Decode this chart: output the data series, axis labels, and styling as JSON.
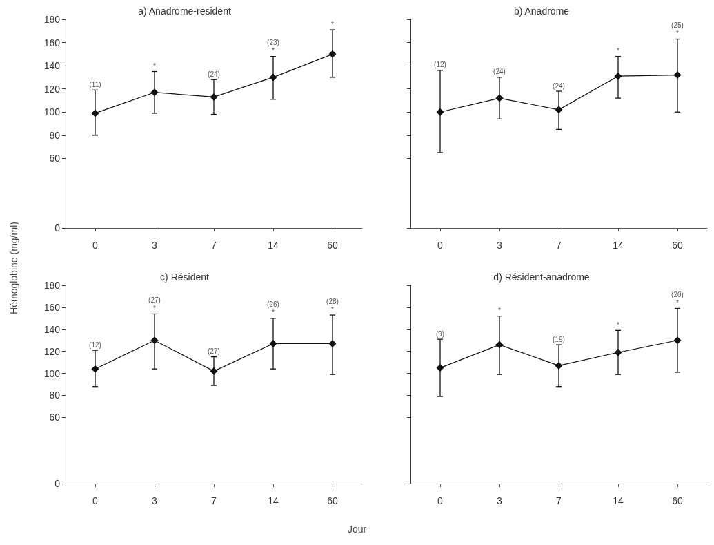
{
  "chart_data": [
    {
      "type": "line",
      "title": "a) Anadrome-resident",
      "xlabel": "Jour",
      "ylabel": "Hémoglobine (mg/ml)",
      "categories": [
        "0",
        "3",
        "7",
        "14",
        "60"
      ],
      "series": [
        {
          "color": "#111111",
          "values": [
            99,
            117,
            113,
            130,
            150
          ],
          "errors": [
            [
              80,
              119
            ],
            [
              99,
              135
            ],
            [
              98,
              128
            ],
            [
              111,
              148
            ],
            [
              130,
              171
            ]
          ]
        }
      ],
      "ylim": [
        0,
        180
      ],
      "yticks": [
        0,
        60,
        80,
        100,
        120,
        140,
        160,
        180
      ],
      "grid": false,
      "marker": "diamond",
      "line_style": "solid",
      "annotations": [
        {
          "text": "(11)",
          "x": "0",
          "y": 119
        },
        {
          "text": "*",
          "x": "3",
          "y": 135
        },
        {
          "text": "(24)",
          "x": "7",
          "y": 128
        },
        {
          "text": "*",
          "x": "14",
          "y": 148
        },
        {
          "text": "(23)",
          "x": "14",
          "y": 148
        },
        {
          "text": "*",
          "x": "60",
          "y": 171
        }
      ]
    },
    {
      "type": "line",
      "title": "b) Anadrome",
      "categories": [
        "0",
        "3",
        "7",
        "14",
        "60"
      ],
      "series": [
        {
          "color": "#111111",
          "values": [
            100,
            112,
            102,
            131,
            132
          ],
          "errors": [
            [
              65,
              136
            ],
            [
              94,
              130
            ],
            [
              85,
              118
            ],
            [
              112,
              148
            ],
            [
              100,
              163
            ]
          ]
        }
      ],
      "ylim": [
        0,
        180
      ],
      "yticks": [
        0,
        60,
        80,
        100,
        120,
        140,
        160,
        180
      ],
      "tick_labels": "x",
      "grid": false,
      "marker": "diamond",
      "line_style": "solid",
      "annotations": [
        {
          "text": "(12)",
          "x": "0",
          "y": 136
        },
        {
          "text": "(24)",
          "x": "3",
          "y": 130
        },
        {
          "text": "(24)",
          "x": "7",
          "y": 118
        },
        {
          "text": "*",
          "x": "14",
          "y": 148
        },
        {
          "text": "*",
          "x": "60",
          "y": 163
        },
        {
          "text": "(25)",
          "x": "60",
          "y": 163
        }
      ]
    },
    {
      "type": "line",
      "title": "c) Résident",
      "categories": [
        "0",
        "3",
        "7",
        "14",
        "60"
      ],
      "series": [
        {
          "color": "#111111",
          "values": [
            104,
            130,
            102,
            127,
            127
          ],
          "errors": [
            [
              88,
              121
            ],
            [
              104,
              154
            ],
            [
              89,
              115
            ],
            [
              104,
              150
            ],
            [
              99,
              153
            ]
          ]
        }
      ],
      "ylim": [
        0,
        180
      ],
      "yticks": [
        0,
        60,
        80,
        100,
        120,
        140,
        160,
        180
      ],
      "grid": false,
      "marker": "diamond",
      "line_style": "solid",
      "annotations": [
        {
          "text": "(12)",
          "x": "0",
          "y": 121
        },
        {
          "text": "*",
          "x": "3",
          "y": 154
        },
        {
          "text": "(27)",
          "x": "3",
          "y": 154
        },
        {
          "text": "(27)",
          "x": "7",
          "y": 115
        },
        {
          "text": "*",
          "x": "14",
          "y": 150
        },
        {
          "text": "(26)",
          "x": "14",
          "y": 150
        },
        {
          "text": "*",
          "x": "60",
          "y": 153
        },
        {
          "text": "(28)",
          "x": "60",
          "y": 153
        }
      ]
    },
    {
      "type": "line",
      "title": "d) Résident-anadrome",
      "categories": [
        "0",
        "3",
        "7",
        "14",
        "60"
      ],
      "series": [
        {
          "color": "#111111",
          "values": [
            105,
            126,
            107,
            119,
            130
          ],
          "errors": [
            [
              79,
              131
            ],
            [
              99,
              152
            ],
            [
              88,
              126
            ],
            [
              99,
              139
            ],
            [
              101,
              159
            ]
          ]
        }
      ],
      "ylim": [
        0,
        180
      ],
      "yticks": [
        0,
        60,
        80,
        100,
        120,
        140,
        160,
        180
      ],
      "tick_labels": "x",
      "grid": false,
      "marker": "diamond",
      "line_style": "solid",
      "annotations": [
        {
          "text": "(9)",
          "x": "0",
          "y": 131
        },
        {
          "text": "*",
          "x": "3",
          "y": 152
        },
        {
          "text": "(19)",
          "x": "7",
          "y": 126
        },
        {
          "text": "*",
          "x": "14",
          "y": 139
        },
        {
          "text": "*",
          "x": "60",
          "y": 159
        },
        {
          "text": "(20)",
          "x": "60",
          "y": 159
        }
      ]
    }
  ]
}
